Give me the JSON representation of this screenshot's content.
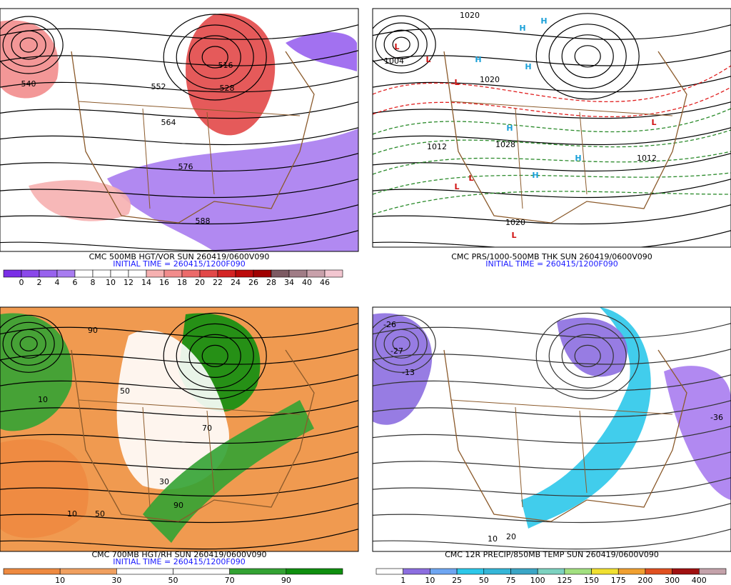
{
  "panels": [
    {
      "title": "CMC 500MB HGT/VOR SUN 260419/0600V090",
      "initial_time": "INITIAL TIME = 260415/1200F090",
      "map_labels": [
        "540",
        "552",
        "564",
        "576",
        "588",
        "528",
        "516"
      ],
      "colorbar": {
        "labels": [
          0,
          2,
          4,
          6,
          8,
          10,
          12,
          14,
          16,
          18,
          20,
          22,
          24,
          26,
          28,
          34,
          40,
          46
        ],
        "colors": [
          "#7a2ee6",
          "#8a48ea",
          "#9862ee",
          "#a87cf0",
          "#ffffff",
          "#ffffff",
          "#ffffff",
          "#ffffff",
          "#f6b0b0",
          "#f28c8c",
          "#ec6a6a",
          "#e24848",
          "#d42424",
          "#bc0a0a",
          "#a00000",
          "#7c5a62",
          "#a07c86",
          "#c8a0aa",
          "#f2c6d0"
        ]
      }
    },
    {
      "title": "CMC PRS/1000-500MB THK SUN 260419/0600V090",
      "initial_time": "INITIAL TIME = 260415/1200F090",
      "map_labels": [
        "L",
        "L",
        "L",
        "L",
        "L",
        "L",
        "L",
        "H",
        "H",
        "H",
        "H",
        "H",
        "H",
        "H",
        "1004",
        "1020",
        "1012",
        "1028",
        "1020",
        "1012",
        "1020"
      ]
    },
    {
      "title": "CMC 700MB HGT/RH SUN 260419/0600V090",
      "initial_time": "INITIAL TIME = 260415/1200F090",
      "map_labels": [
        "90",
        "50",
        "10",
        "70",
        "30",
        "10",
        "50",
        "90"
      ],
      "colorbar": {
        "labels": [
          10,
          30,
          50,
          70,
          90
        ],
        "colors": [
          "#ee8a40",
          "#f0a060",
          "#ffffff",
          "#ffffff",
          "#33a333",
          "#0f8f0f"
        ]
      }
    },
    {
      "title": "CMC 12R PRECIP/850MB TEMP SUN 260419/0600V090",
      "map_labels": [
        "-26",
        "-27",
        "-13",
        "10",
        "20",
        "-36"
      ],
      "colorbar": {
        "labels": [
          1,
          10,
          25,
          50,
          75,
          100,
          125,
          150,
          175,
          200,
          300,
          400
        ],
        "colors": [
          "#ffffff",
          "#8c6ee0",
          "#6ea6f2",
          "#2cc8ea",
          "#34b6d8",
          "#3aa6c6",
          "#7cd2c0",
          "#a2e080",
          "#f0e030",
          "#f0a030",
          "#e05020",
          "#a01010",
          "#c4a2aa"
        ]
      }
    }
  ]
}
